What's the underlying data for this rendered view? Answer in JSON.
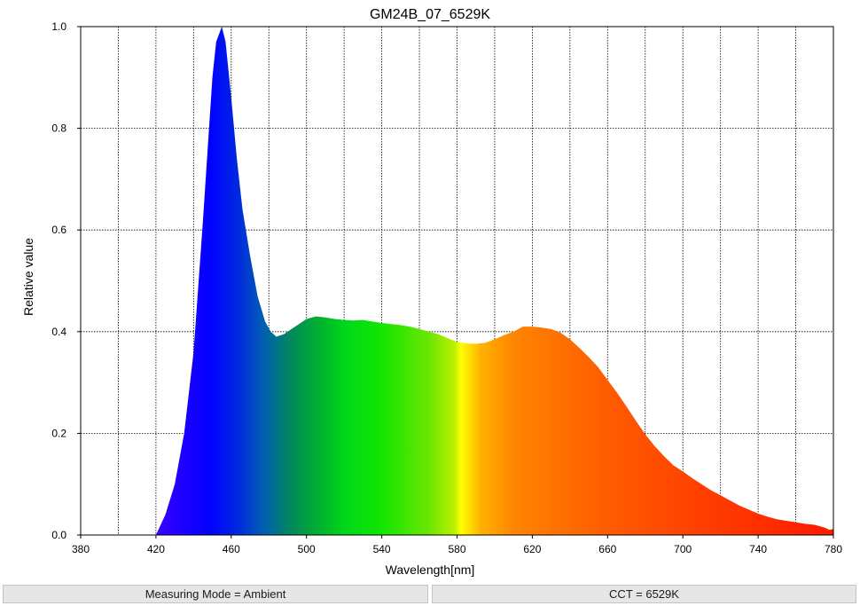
{
  "chart_data": {
    "type": "area",
    "title": "GM24B_07_6529K",
    "xlabel": "Wavelength[nm]",
    "ylabel": "Relative value",
    "xlim": [
      380,
      780
    ],
    "ylim": [
      0,
      1.0
    ],
    "x_ticks": [
      380,
      420,
      460,
      500,
      540,
      580,
      620,
      660,
      700,
      740,
      780
    ],
    "y_ticks": [
      0.0,
      0.2,
      0.4,
      0.6,
      0.8,
      1.0
    ],
    "x_tick_labels": [
      "380",
      "420",
      "460",
      "500",
      "540",
      "580",
      "620",
      "660",
      "700",
      "740",
      "780"
    ],
    "y_tick_labels": [
      "0.0",
      "0.2",
      "0.4",
      "0.6",
      "0.8",
      "1.0"
    ],
    "x_grid_minor": [
      400,
      440,
      480,
      520,
      560,
      600,
      640,
      680,
      720,
      760
    ],
    "grid": true,
    "fill": "spectral-gradient",
    "x": [
      420,
      425,
      430,
      435,
      440,
      445,
      450,
      452,
      455,
      457,
      460,
      463,
      466,
      470,
      474,
      478,
      481,
      484,
      488,
      492,
      496,
      500,
      505,
      510,
      515,
      520,
      525,
      530,
      535,
      540,
      545,
      550,
      555,
      560,
      565,
      570,
      575,
      580,
      585,
      590,
      595,
      600,
      605,
      610,
      615,
      620,
      625,
      630,
      635,
      640,
      645,
      650,
      655,
      660,
      665,
      670,
      675,
      680,
      685,
      690,
      695,
      700,
      705,
      710,
      715,
      720,
      725,
      730,
      735,
      740,
      745,
      750,
      755,
      760,
      765,
      770,
      775,
      778,
      780
    ],
    "values": [
      0.0,
      0.04,
      0.1,
      0.2,
      0.36,
      0.62,
      0.9,
      0.97,
      1.0,
      0.97,
      0.86,
      0.74,
      0.64,
      0.55,
      0.47,
      0.42,
      0.4,
      0.39,
      0.395,
      0.405,
      0.415,
      0.425,
      0.43,
      0.428,
      0.425,
      0.423,
      0.422,
      0.423,
      0.42,
      0.417,
      0.415,
      0.413,
      0.41,
      0.405,
      0.4,
      0.395,
      0.387,
      0.38,
      0.377,
      0.376,
      0.378,
      0.385,
      0.393,
      0.4,
      0.41,
      0.41,
      0.408,
      0.405,
      0.398,
      0.385,
      0.368,
      0.35,
      0.33,
      0.305,
      0.28,
      0.253,
      0.225,
      0.198,
      0.175,
      0.155,
      0.137,
      0.125,
      0.112,
      0.1,
      0.088,
      0.078,
      0.068,
      0.058,
      0.05,
      0.042,
      0.036,
      0.031,
      0.028,
      0.025,
      0.022,
      0.02,
      0.015,
      0.01,
      0.012
    ]
  },
  "status": {
    "measuring_mode": "Measuring Mode = Ambient",
    "cct": "CCT = 6529K"
  }
}
